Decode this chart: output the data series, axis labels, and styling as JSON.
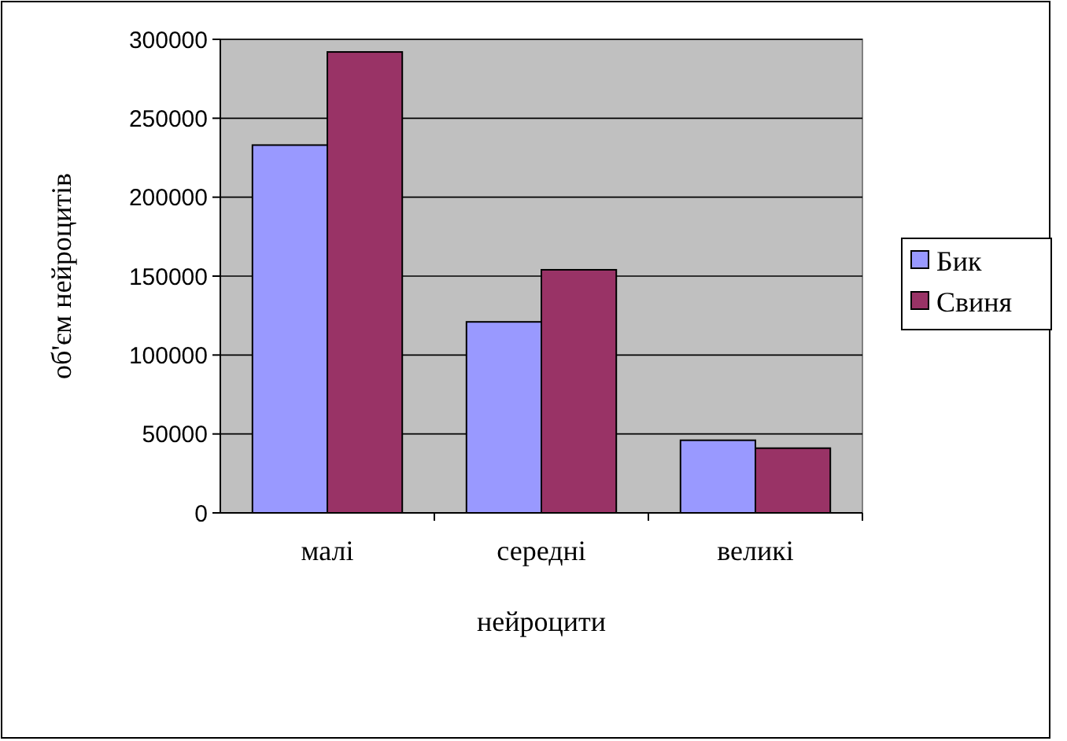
{
  "chart_data": {
    "type": "bar",
    "xlabel": "нейроцити",
    "ylabel": "об'єм нейроцитів",
    "categories": [
      "малі",
      "середні",
      "великі"
    ],
    "series": [
      {
        "name": "Бик",
        "color": "#9999ff",
        "values": [
          233000,
          121000,
          46000
        ]
      },
      {
        "name": "Свиня",
        "color": "#993366",
        "values": [
          292000,
          154000,
          41000
        ]
      }
    ],
    "ylim": [
      0,
      300000
    ],
    "yticks": [
      0,
      50000,
      100000,
      150000,
      200000,
      250000,
      300000
    ],
    "grid": "y",
    "legend": "right"
  }
}
